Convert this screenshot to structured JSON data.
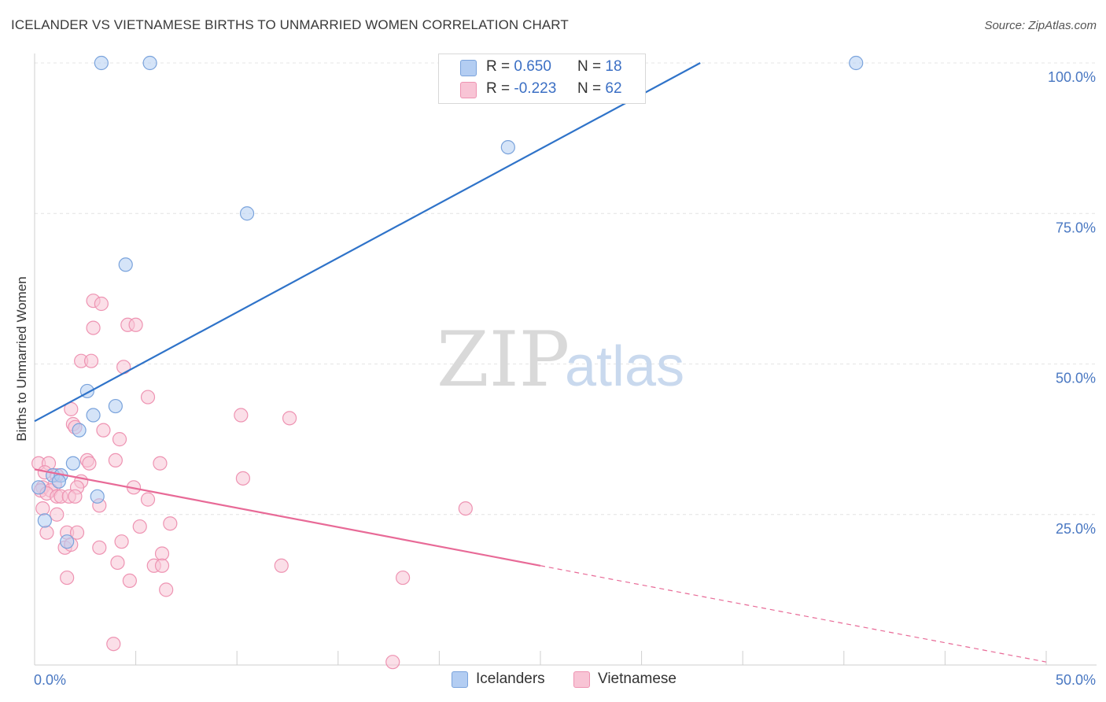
{
  "header": {
    "title": "ICELANDER VS VIETNAMESE BIRTHS TO UNMARRIED WOMEN CORRELATION CHART",
    "source": "Source: ZipAtlas.com"
  },
  "watermark": {
    "zip": "ZIP",
    "atlas": "atlas"
  },
  "legend_top": {
    "rows": [
      {
        "r_label": "R =",
        "r_value": "0.650",
        "n_label": "N =",
        "n_value": "18"
      },
      {
        "r_label": "R =",
        "r_value": "-0.223",
        "n_label": "N =",
        "n_value": "62"
      }
    ]
  },
  "legend_bottom": {
    "items": [
      {
        "label": "Icelanders"
      },
      {
        "label": "Vietnamese"
      }
    ]
  },
  "colors": {
    "blue_fill": "#b3cdf2",
    "blue_stroke": "#7aa3dc",
    "blue_line": "#2f73c9",
    "pink_fill": "#f8c4d5",
    "pink_stroke": "#ee93b2",
    "pink_line": "#e86a97",
    "grid": "#e4e4e4",
    "axis_text": "#4a78c2"
  },
  "chart_data": {
    "type": "scatter",
    "title": "ICELANDER VS VIETNAMESE BIRTHS TO UNMARRIED WOMEN CORRELATION CHART",
    "xlabel": "",
    "ylabel": "Births to Unmarried Women",
    "xlim": [
      0,
      50
    ],
    "ylim": [
      0,
      100
    ],
    "x_tick_labels": [
      "0.0%",
      "50.0%"
    ],
    "y_ticks": [
      25,
      50,
      75,
      100
    ],
    "y_tick_labels": [
      "25.0%",
      "50.0%",
      "75.0%",
      "100.0%"
    ],
    "grid": true,
    "legend": "top-center",
    "series": [
      {
        "name": "Icelanders",
        "color": "#b3cdf2",
        "r": 0.65,
        "n": 18,
        "points": [
          [
            3.3,
            100
          ],
          [
            5.7,
            100
          ],
          [
            40.6,
            100
          ],
          [
            23.4,
            86
          ],
          [
            10.5,
            75
          ],
          [
            4.5,
            66.5
          ],
          [
            2.6,
            45.5
          ],
          [
            2.9,
            41.5
          ],
          [
            4.0,
            43
          ],
          [
            2.2,
            39
          ],
          [
            1.9,
            33.5
          ],
          [
            0.9,
            31.5
          ],
          [
            1.3,
            31.5
          ],
          [
            1.2,
            30.5
          ],
          [
            0.2,
            29.5
          ],
          [
            3.1,
            28
          ],
          [
            0.5,
            24
          ],
          [
            1.6,
            20.5
          ]
        ],
        "trend": {
          "x1": 0,
          "y1": 40.5,
          "x2": 32.9,
          "y2": 100
        }
      },
      {
        "name": "Vietnamese",
        "color": "#f8c4d5",
        "r": -0.223,
        "n": 62,
        "points": [
          [
            2.9,
            60.5
          ],
          [
            3.3,
            60
          ],
          [
            4.6,
            56.5
          ],
          [
            5.0,
            56.5
          ],
          [
            2.9,
            56
          ],
          [
            2.3,
            50.5
          ],
          [
            2.8,
            50.5
          ],
          [
            4.4,
            49.5
          ],
          [
            5.6,
            44.5
          ],
          [
            10.2,
            41.5
          ],
          [
            12.6,
            41
          ],
          [
            1.8,
            42.5
          ],
          [
            1.9,
            40
          ],
          [
            2.0,
            39.5
          ],
          [
            3.4,
            39
          ],
          [
            4.2,
            37.5
          ],
          [
            0.2,
            33.5
          ],
          [
            0.7,
            33.5
          ],
          [
            2.6,
            34
          ],
          [
            2.7,
            33.5
          ],
          [
            4.0,
            34
          ],
          [
            6.2,
            33.5
          ],
          [
            0.5,
            32
          ],
          [
            1.1,
            31.5
          ],
          [
            2.3,
            30.5
          ],
          [
            1.0,
            30
          ],
          [
            0.4,
            29.5
          ],
          [
            0.3,
            29
          ],
          [
            0.8,
            29
          ],
          [
            2.1,
            29.5
          ],
          [
            4.9,
            29.5
          ],
          [
            10.3,
            31
          ],
          [
            0.6,
            28.5
          ],
          [
            1.1,
            28
          ],
          [
            1.3,
            28
          ],
          [
            1.7,
            28
          ],
          [
            2.0,
            28
          ],
          [
            5.6,
            27.5
          ],
          [
            0.4,
            26
          ],
          [
            3.2,
            26.5
          ],
          [
            1.1,
            25
          ],
          [
            21.3,
            26
          ],
          [
            0.6,
            22
          ],
          [
            1.6,
            22
          ],
          [
            2.1,
            22
          ],
          [
            5.2,
            23
          ],
          [
            6.7,
            23.5
          ],
          [
            4.3,
            20.5
          ],
          [
            1.5,
            19.5
          ],
          [
            1.8,
            20
          ],
          [
            3.2,
            19.5
          ],
          [
            6.3,
            18.5
          ],
          [
            4.1,
            17
          ],
          [
            5.9,
            16.5
          ],
          [
            6.3,
            16.5
          ],
          [
            12.2,
            16.5
          ],
          [
            1.6,
            14.5
          ],
          [
            4.7,
            14
          ],
          [
            6.5,
            12.5
          ],
          [
            18.2,
            14.5
          ],
          [
            3.9,
            3.5
          ],
          [
            17.7,
            0.5
          ]
        ],
        "trend": {
          "x1": 0,
          "y1": 32.5,
          "x2": 25,
          "y2": 16.5
        },
        "trend_extension": {
          "x1": 25,
          "y1": 16.5,
          "x2": 50,
          "y2": 0.5
        }
      }
    ]
  }
}
